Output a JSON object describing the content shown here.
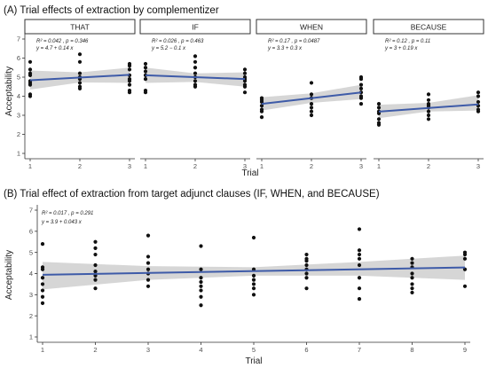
{
  "colors": {
    "point": "#111111",
    "line": "#3e5ba8",
    "band": "#c8c8c8",
    "strip_fill": "#ffffff",
    "strip_border": "#333333",
    "axis": "#333333"
  },
  "chart_data": [
    {
      "type": "scatter",
      "title": "(A) Trial effects of extraction by complementizer",
      "xlabel": "Trial",
      "ylabel": "Acceptability",
      "xlim": [
        1,
        3
      ],
      "ylim": [
        1,
        7
      ],
      "x_ticks": [
        "1",
        "2",
        "3"
      ],
      "y_ticks": [
        "1",
        "2",
        "3",
        "4",
        "5",
        "6",
        "7"
      ],
      "grid": false,
      "fit": "linear with 95% confidence band",
      "facets": [
        {
          "name": "THAT",
          "stat": "R² = 0.042 , p = 0.346",
          "equation": "y = 4.7 + 0.14 x",
          "intercept": 4.7,
          "slope": 0.14,
          "band": [
            [
              1,
              4.35,
              5.35
            ],
            [
              2,
              4.72,
              5.25
            ],
            [
              3,
              4.7,
              5.5
            ]
          ],
          "points": [
            [
              1,
              5.8
            ],
            [
              1,
              5.4
            ],
            [
              1,
              5.2
            ],
            [
              1,
              5.1
            ],
            [
              1,
              4.8
            ],
            [
              1,
              4.7
            ],
            [
              1,
              4.6
            ],
            [
              1,
              4.1
            ],
            [
              1,
              4.0
            ],
            [
              2,
              6.2
            ],
            [
              2,
              5.8
            ],
            [
              2,
              5.2
            ],
            [
              2,
              5.0
            ],
            [
              2,
              4.9
            ],
            [
              2,
              4.7
            ],
            [
              2,
              4.5
            ],
            [
              2,
              4.4
            ],
            [
              3,
              5.7
            ],
            [
              3,
              5.6
            ],
            [
              3,
              5.4
            ],
            [
              3,
              5.1
            ],
            [
              3,
              4.9
            ],
            [
              3,
              4.8
            ],
            [
              3,
              4.6
            ],
            [
              3,
              4.3
            ],
            [
              3,
              4.2
            ]
          ]
        },
        {
          "name": "IF",
          "stat": "R² = 0.026 , p = 0.463",
          "equation": "y = 5.2 − 0.1 x",
          "intercept": 5.2,
          "slope": -0.1,
          "band": [
            [
              1,
              4.7,
              5.5
            ],
            [
              2,
              4.75,
              5.2
            ],
            [
              3,
              4.5,
              5.25
            ]
          ],
          "points": [
            [
              1,
              5.7
            ],
            [
              1,
              5.5
            ],
            [
              1,
              5.3
            ],
            [
              1,
              5.1
            ],
            [
              1,
              4.9
            ],
            [
              1,
              4.3
            ],
            [
              1,
              4.2
            ],
            [
              2,
              6.1
            ],
            [
              2,
              5.8
            ],
            [
              2,
              5.5
            ],
            [
              2,
              5.2
            ],
            [
              2,
              5.0
            ],
            [
              2,
              4.8
            ],
            [
              2,
              4.6
            ],
            [
              2,
              4.5
            ],
            [
              3,
              5.4
            ],
            [
              3,
              5.2
            ],
            [
              3,
              5.0
            ],
            [
              3,
              4.9
            ],
            [
              3,
              4.8
            ],
            [
              3,
              4.6
            ],
            [
              3,
              4.5
            ],
            [
              3,
              4.2
            ]
          ]
        },
        {
          "name": "WHEN",
          "stat": "R² = 0.17 , p = 0.0487",
          "equation": "y = 3.3 + 0.3 x",
          "intercept": 3.3,
          "slope": 0.3,
          "band": [
            [
              1,
              3.25,
              3.95
            ],
            [
              2,
              3.65,
              4.15
            ],
            [
              3,
              3.85,
              4.6
            ]
          ],
          "points": [
            [
              1,
              3.9
            ],
            [
              1,
              3.8
            ],
            [
              1,
              3.7
            ],
            [
              1,
              3.5
            ],
            [
              1,
              3.3
            ],
            [
              1,
              3.2
            ],
            [
              1,
              2.9
            ],
            [
              2,
              4.7
            ],
            [
              2,
              4.1
            ],
            [
              2,
              3.9
            ],
            [
              2,
              3.6
            ],
            [
              2,
              3.4
            ],
            [
              2,
              3.2
            ],
            [
              2,
              3.0
            ],
            [
              3,
              5.0
            ],
            [
              3,
              4.9
            ],
            [
              3,
              4.6
            ],
            [
              3,
              4.4
            ],
            [
              3,
              4.2
            ],
            [
              3,
              4.0
            ],
            [
              3,
              3.9
            ],
            [
              3,
              3.6
            ]
          ]
        },
        {
          "name": "BECAUSE",
          "stat": "R² = 0.12 , p = 0.11",
          "equation": "y = 3 + 0.19 x",
          "intercept": 3.0,
          "slope": 0.19,
          "band": [
            [
              1,
              2.85,
              3.55
            ],
            [
              2,
              3.2,
              3.65
            ],
            [
              3,
              3.25,
              4.05
            ]
          ],
          "points": [
            [
              1,
              3.6
            ],
            [
              1,
              3.4
            ],
            [
              1,
              3.2
            ],
            [
              1,
              3.1
            ],
            [
              1,
              2.8
            ],
            [
              1,
              2.6
            ],
            [
              1,
              2.5
            ],
            [
              2,
              4.1
            ],
            [
              2,
              3.8
            ],
            [
              2,
              3.6
            ],
            [
              2,
              3.5
            ],
            [
              2,
              3.4
            ],
            [
              2,
              3.2
            ],
            [
              2,
              3.0
            ],
            [
              2,
              2.8
            ],
            [
              3,
              4.2
            ],
            [
              3,
              4.0
            ],
            [
              3,
              3.7
            ],
            [
              3,
              3.5
            ],
            [
              3,
              3.3
            ],
            [
              3,
              3.2
            ]
          ]
        }
      ]
    },
    {
      "type": "scatter",
      "title": "(B) Trial effect of extraction from target adjunct clauses (IF, WHEN, and BECAUSE)",
      "xlabel": "Trial",
      "ylabel": "Acceptability",
      "xlim": [
        1,
        9
      ],
      "ylim": [
        1,
        7
      ],
      "x_ticks": [
        "1",
        "2",
        "3",
        "4",
        "5",
        "6",
        "7",
        "8",
        "9"
      ],
      "y_ticks": [
        "1",
        "2",
        "3",
        "4",
        "5",
        "6",
        "7"
      ],
      "grid": false,
      "fit": "linear with 95% confidence band",
      "stat": "R² = 0.017 , p = 0.291",
      "equation": "y = 3.9 + 0.043 x",
      "intercept": 3.9,
      "slope": 0.043,
      "band": [
        [
          1,
          3.25,
          4.55
        ],
        [
          3,
          3.7,
          4.35
        ],
        [
          5,
          3.9,
          4.3
        ],
        [
          7,
          3.9,
          4.55
        ],
        [
          9,
          3.7,
          4.85
        ]
      ],
      "points": [
        [
          1,
          5.4
        ],
        [
          1,
          4.3
        ],
        [
          1,
          4.2
        ],
        [
          1,
          3.8
        ],
        [
          1,
          3.5
        ],
        [
          1,
          3.2
        ],
        [
          1,
          2.9
        ],
        [
          1,
          2.6
        ],
        [
          2,
          5.5
        ],
        [
          2,
          5.2
        ],
        [
          2,
          4.9
        ],
        [
          2,
          4.4
        ],
        [
          2,
          4.1
        ],
        [
          2,
          3.9
        ],
        [
          2,
          3.7
        ],
        [
          2,
          3.3
        ],
        [
          3,
          5.8
        ],
        [
          3,
          4.8
        ],
        [
          3,
          4.5
        ],
        [
          3,
          4.2
        ],
        [
          3,
          4.0
        ],
        [
          3,
          3.7
        ],
        [
          3,
          3.4
        ],
        [
          4,
          5.3
        ],
        [
          4,
          4.2
        ],
        [
          4,
          3.8
        ],
        [
          4,
          3.6
        ],
        [
          4,
          3.4
        ],
        [
          4,
          3.2
        ],
        [
          4,
          2.9
        ],
        [
          4,
          2.5
        ],
        [
          5,
          5.7
        ],
        [
          5,
          4.2
        ],
        [
          5,
          3.9
        ],
        [
          5,
          3.7
        ],
        [
          5,
          3.5
        ],
        [
          5,
          3.3
        ],
        [
          5,
          3.0
        ],
        [
          6,
          4.9
        ],
        [
          6,
          4.7
        ],
        [
          6,
          4.6
        ],
        [
          6,
          4.4
        ],
        [
          6,
          4.2
        ],
        [
          6,
          4.0
        ],
        [
          6,
          3.8
        ],
        [
          6,
          3.3
        ],
        [
          7,
          6.1
        ],
        [
          7,
          5.1
        ],
        [
          7,
          4.9
        ],
        [
          7,
          4.7
        ],
        [
          7,
          4.4
        ],
        [
          7,
          3.8
        ],
        [
          7,
          3.3
        ],
        [
          7,
          2.8
        ],
        [
          8,
          4.7
        ],
        [
          8,
          4.5
        ],
        [
          8,
          4.3
        ],
        [
          8,
          4.0
        ],
        [
          8,
          3.8
        ],
        [
          8,
          3.5
        ],
        [
          8,
          3.3
        ],
        [
          8,
          3.1
        ],
        [
          9,
          5.0
        ],
        [
          9,
          4.9
        ],
        [
          9,
          4.7
        ],
        [
          9,
          4.2
        ],
        [
          9,
          3.4
        ]
      ]
    }
  ]
}
